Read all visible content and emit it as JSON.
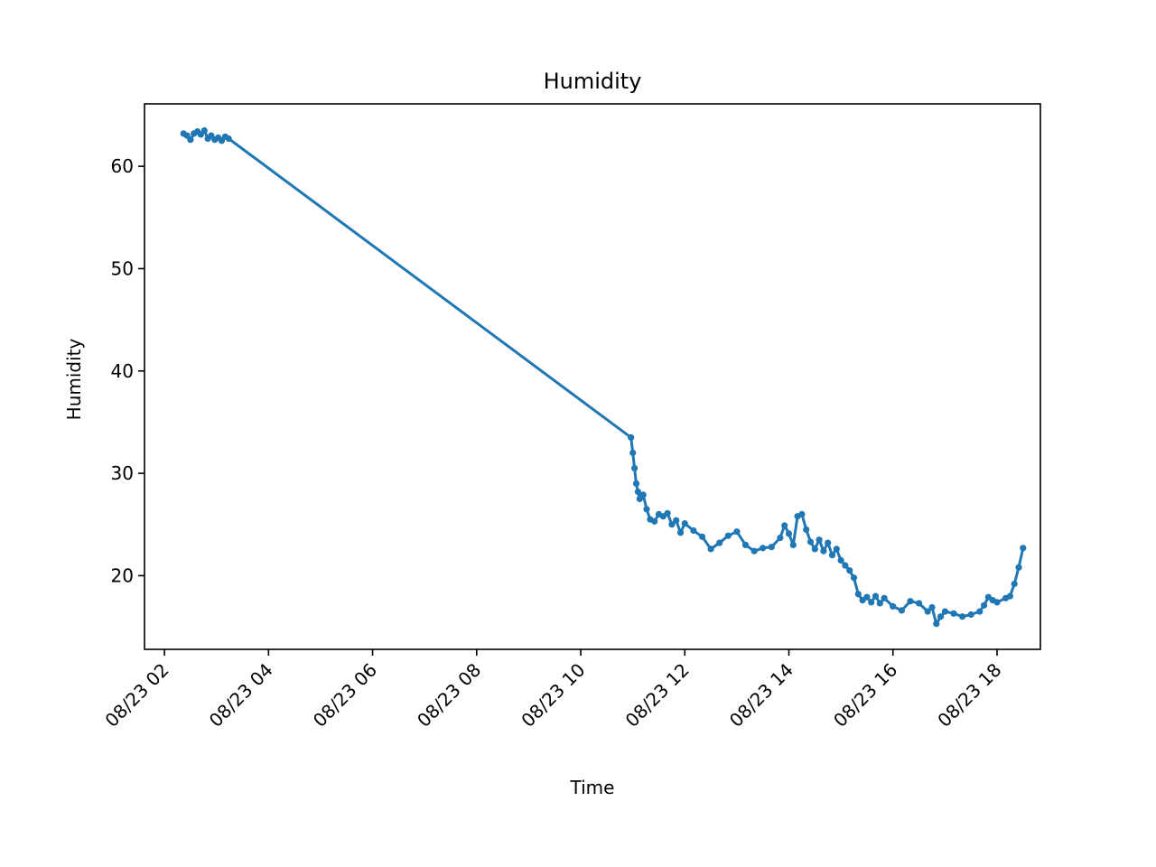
{
  "chart_data": {
    "type": "line",
    "title": "Humidity",
    "xlabel": "Time",
    "ylabel": "Humidity",
    "x_tick_labels": [
      "08/23 02",
      "08/23 04",
      "08/23 06",
      "08/23 08",
      "08/23 10",
      "08/23 12",
      "08/23 14",
      "08/23 16",
      "08/23 18"
    ],
    "y_ticks": [
      20,
      30,
      40,
      50,
      60
    ],
    "xlim": [
      "08/23 01:37",
      "08/23 18:50"
    ],
    "ylim": [
      12.8,
      66.1
    ],
    "grid": false,
    "marker": "dot",
    "colors": {
      "line": "#1f77b4"
    },
    "series": [
      {
        "x": [
          "08/23 02:22",
          "08/23 02:26",
          "08/23 02:30",
          "08/23 02:34",
          "08/23 02:38",
          "08/23 02:42",
          "08/23 02:46",
          "08/23 02:50",
          "08/23 02:54",
          "08/23 02:58",
          "08/23 03:02",
          "08/23 03:06",
          "08/23 03:10",
          "08/23 03:14",
          "08/23 10:58",
          "08/23 11:00",
          "08/23 11:02",
          "08/23 11:04",
          "08/23 11:06",
          "08/23 11:08",
          "08/23 11:12",
          "08/23 11:16",
          "08/23 11:20",
          "08/23 11:25",
          "08/23 11:30",
          "08/23 11:35",
          "08/23 11:40",
          "08/23 11:45",
          "08/23 11:50",
          "08/23 11:55",
          "08/23 12:00",
          "08/23 12:10",
          "08/23 12:20",
          "08/23 12:30",
          "08/23 12:40",
          "08/23 12:50",
          "08/23 13:00",
          "08/23 13:10",
          "08/23 13:20",
          "08/23 13:30",
          "08/23 13:40",
          "08/23 13:50",
          "08/23 13:55",
          "08/23 14:00",
          "08/23 14:05",
          "08/23 14:10",
          "08/23 14:15",
          "08/23 14:20",
          "08/23 14:25",
          "08/23 14:30",
          "08/23 14:35",
          "08/23 14:40",
          "08/23 14:45",
          "08/23 14:50",
          "08/23 14:55",
          "08/23 15:00",
          "08/23 15:05",
          "08/23 15:10",
          "08/23 15:15",
          "08/23 15:20",
          "08/23 15:25",
          "08/23 15:30",
          "08/23 15:35",
          "08/23 15:40",
          "08/23 15:45",
          "08/23 15:50",
          "08/23 16:00",
          "08/23 16:10",
          "08/23 16:20",
          "08/23 16:30",
          "08/23 16:40",
          "08/23 16:45",
          "08/23 16:50",
          "08/23 16:55",
          "08/23 17:00",
          "08/23 17:10",
          "08/23 17:20",
          "08/23 17:30",
          "08/23 17:40",
          "08/23 17:45",
          "08/23 17:50",
          "08/23 17:55",
          "08/23 18:00",
          "08/23 18:10",
          "08/23 18:15",
          "08/23 18:20",
          "08/23 18:25",
          "08/23 18:30"
        ],
        "y": [
          63.2,
          63.0,
          62.6,
          63.2,
          63.4,
          63.1,
          63.5,
          62.7,
          63.0,
          62.6,
          62.8,
          62.5,
          62.9,
          62.7,
          33.5,
          32.0,
          30.5,
          29.0,
          28.2,
          27.5,
          27.9,
          26.5,
          25.5,
          25.3,
          26.0,
          25.8,
          26.1,
          25.0,
          25.4,
          24.2,
          25.1,
          24.4,
          23.8,
          22.6,
          23.2,
          23.9,
          24.3,
          23.0,
          22.4,
          22.7,
          22.8,
          23.7,
          24.9,
          24.1,
          23.0,
          25.8,
          26.0,
          24.5,
          23.3,
          22.6,
          23.5,
          22.4,
          23.2,
          22.0,
          22.6,
          21.5,
          21.0,
          20.5,
          19.8,
          18.2,
          17.6,
          17.9,
          17.4,
          18.0,
          17.3,
          17.8,
          17.0,
          16.6,
          17.5,
          17.3,
          16.5,
          16.9,
          15.3,
          16.0,
          16.5,
          16.3,
          16.0,
          16.2,
          16.5,
          17.1,
          17.9,
          17.6,
          17.4,
          17.8,
          18.0,
          19.2,
          20.8,
          22.7
        ]
      }
    ]
  }
}
